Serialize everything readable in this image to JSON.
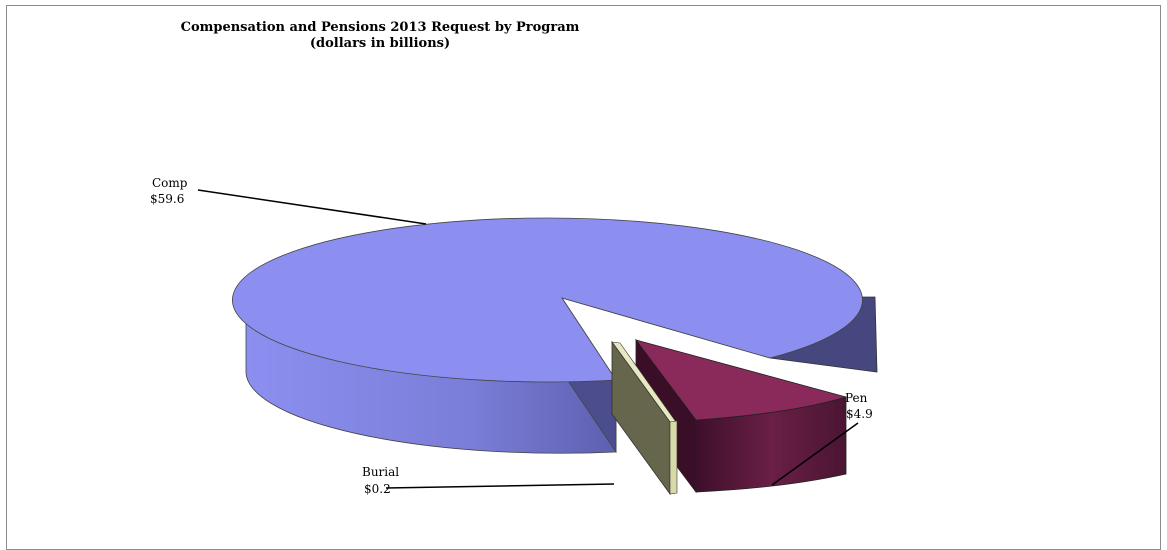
{
  "chart_data": {
    "type": "pie",
    "title": "Compensation and Pensions 2013 Request by Program",
    "subtitle": "(dollars in billions)",
    "slices": [
      {
        "label": "Comp",
        "value_label": "$59.6",
        "value": 59.6,
        "color": "#8c8ff0"
      },
      {
        "label": "Pen",
        "value_label": "$4.9",
        "value": 4.9,
        "color": "#8a2a5a"
      },
      {
        "label": "Burial",
        "value_label": "$0.2",
        "value": 0.2,
        "color": "#c8c89a"
      }
    ]
  }
}
